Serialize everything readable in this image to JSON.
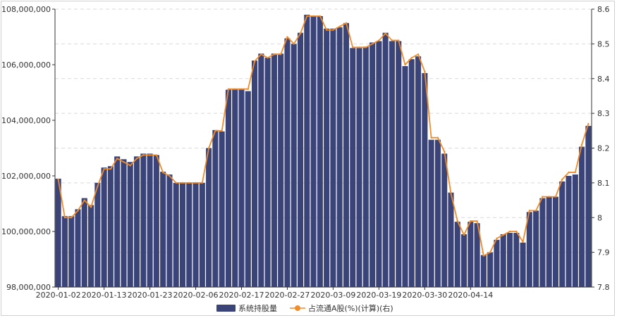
{
  "chart_data": {
    "type": "bar",
    "x_tick_labels": [
      "2020-01-02",
      "2020-01-13",
      "2020-01-23",
      "2020-02-06",
      "2020-02-17",
      "2020-02-27",
      "2020-03-09",
      "2020-03-19",
      "2020-03-30",
      "2020-04-14"
    ],
    "x_tick_indices": [
      0,
      7,
      14,
      21,
      28,
      35,
      42,
      49,
      56,
      63
    ],
    "y_left_ticks": [
      "98,000,000",
      "100,000,000",
      "102,000,000",
      "104,000,000",
      "106,000,000",
      "108,000,000"
    ],
    "y_right_ticks": [
      "7.8",
      "7.9",
      "8",
      "8.1",
      "8.2",
      "8.3",
      "8.4",
      "8.5",
      "8.6"
    ],
    "ylim_left": [
      98000000,
      108000000
    ],
    "ylim_right": [
      7.8,
      8.6
    ],
    "grid": "horizontal dashed",
    "legend_position": "bottom-center",
    "series": [
      {
        "name": "系统持股量",
        "kind": "bar",
        "axis": "left",
        "color": "#3a4479",
        "values": [
          101900000,
          100550000,
          100550000,
          100800000,
          101200000,
          100950000,
          101750000,
          102300000,
          102350000,
          102700000,
          102600000,
          102500000,
          102700000,
          102800000,
          102800000,
          102750000,
          102150000,
          102050000,
          101750000,
          101750000,
          101750000,
          101750000,
          101750000,
          103000000,
          103650000,
          103600000,
          105100000,
          105100000,
          105100000,
          105050000,
          106150000,
          106400000,
          106250000,
          106400000,
          106400000,
          106950000,
          106750000,
          107150000,
          107800000,
          107750000,
          107750000,
          107300000,
          107300000,
          107350000,
          107500000,
          106600000,
          106600000,
          106650000,
          106800000,
          106850000,
          107150000,
          106850000,
          106850000,
          105950000,
          106200000,
          106300000,
          105700000,
          103300000,
          103300000,
          102800000,
          101400000,
          100350000,
          99900000,
          100350000,
          100300000,
          99150000,
          99250000,
          99700000,
          99900000,
          99950000,
          99950000,
          99600000,
          100700000,
          100750000,
          101200000,
          101250000,
          101250000,
          101800000,
          102000000,
          102050000,
          103050000,
          103800000
        ]
      },
      {
        "name": "占流通A股(%)(计算)(右)",
        "kind": "line",
        "axis": "right",
        "color": "#f08c2a",
        "values": [
          8.11,
          8.0,
          8.0,
          8.02,
          8.05,
          8.03,
          8.09,
          8.14,
          8.14,
          8.17,
          8.16,
          8.15,
          8.17,
          8.18,
          8.18,
          8.18,
          8.13,
          8.12,
          8.1,
          8.1,
          8.1,
          8.1,
          8.1,
          8.2,
          8.25,
          8.25,
          8.37,
          8.37,
          8.37,
          8.37,
          8.45,
          8.47,
          8.46,
          8.47,
          8.47,
          8.52,
          8.5,
          8.53,
          8.58,
          8.58,
          8.58,
          8.54,
          8.54,
          8.55,
          8.56,
          8.49,
          8.49,
          8.49,
          8.5,
          8.51,
          8.53,
          8.51,
          8.51,
          8.44,
          8.46,
          8.47,
          8.42,
          8.23,
          8.23,
          8.19,
          8.07,
          7.99,
          7.95,
          7.99,
          7.99,
          7.89,
          7.9,
          7.94,
          7.95,
          7.96,
          7.96,
          7.93,
          8.02,
          8.02,
          8.06,
          8.06,
          8.06,
          8.11,
          8.13,
          8.13,
          8.21,
          8.27
        ]
      }
    ]
  }
}
